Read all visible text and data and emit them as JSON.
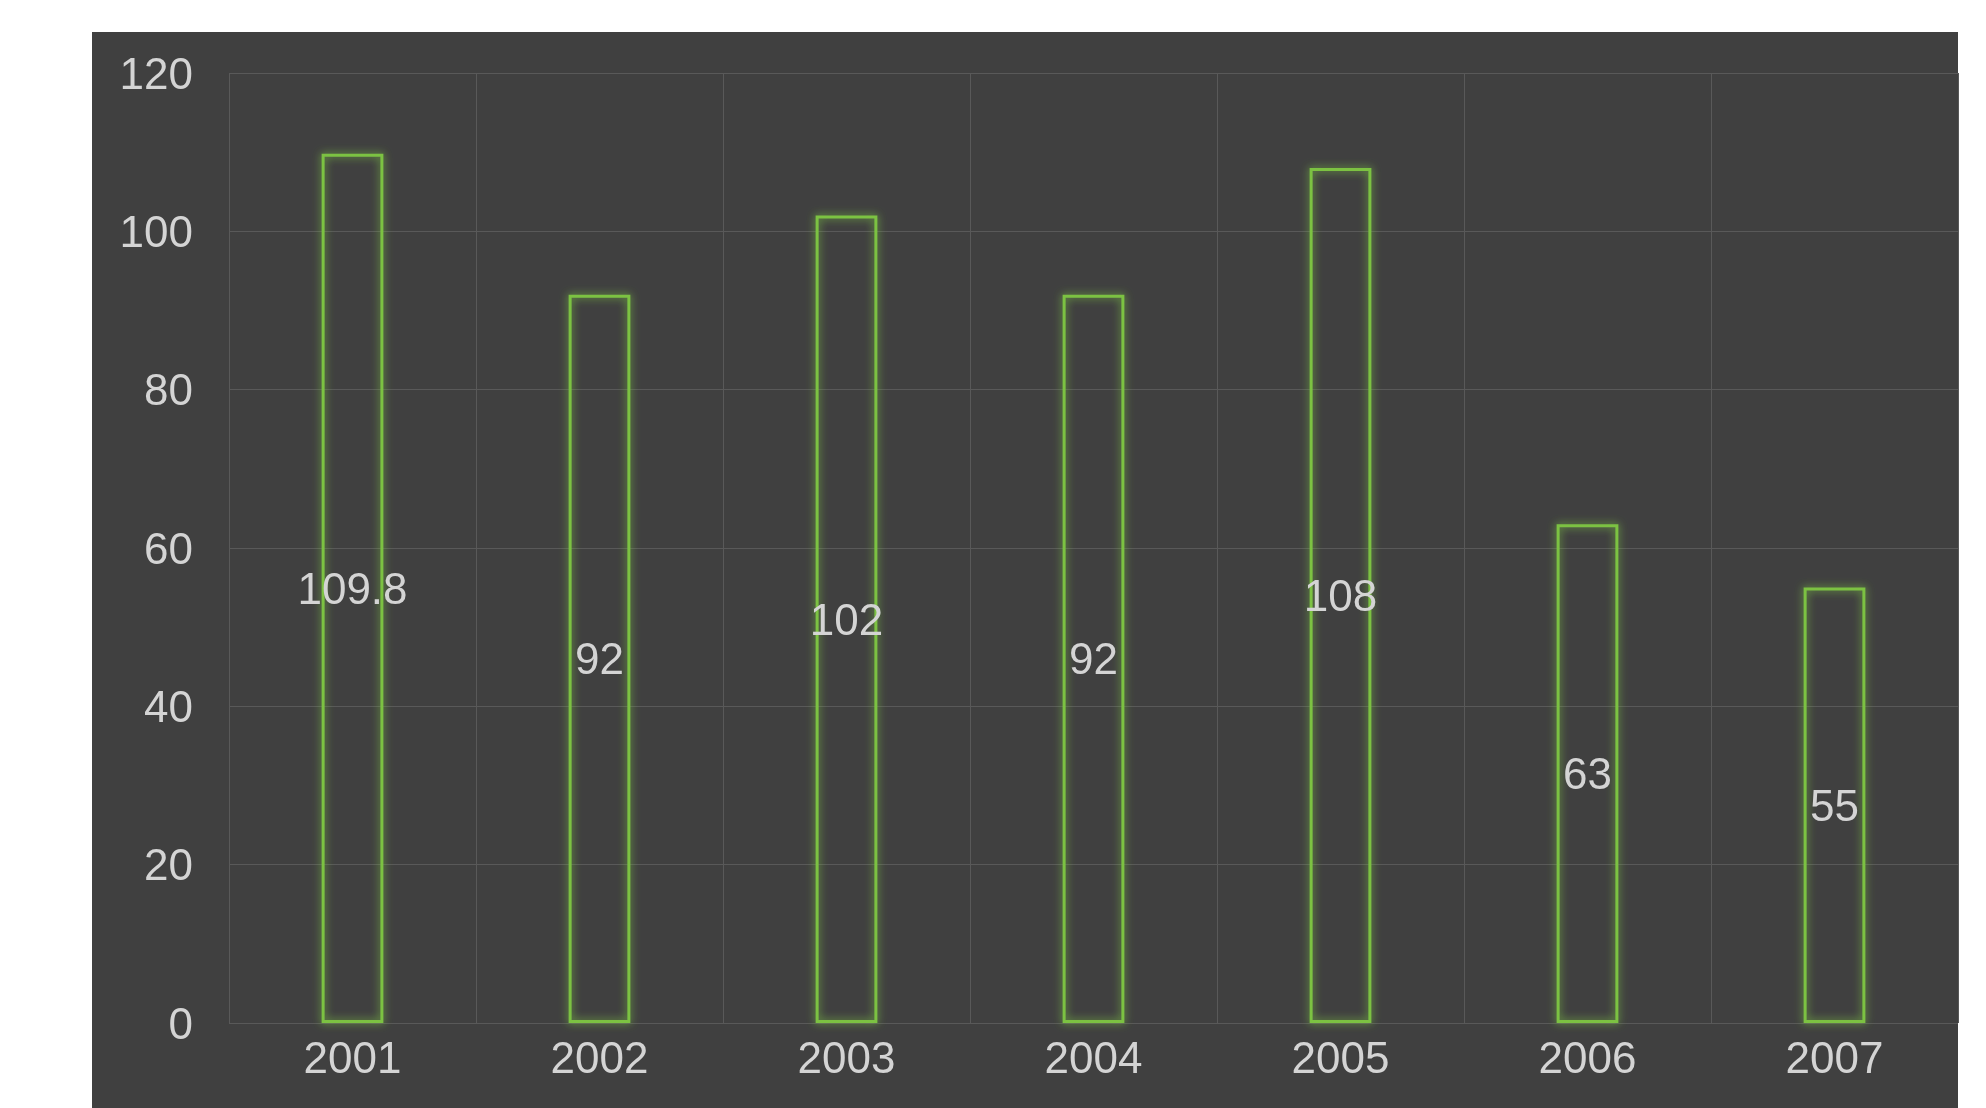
{
  "chart_data": {
    "type": "bar",
    "categories": [
      "2001",
      "2002",
      "2003",
      "2004",
      "2005",
      "2006",
      "2007"
    ],
    "values": [
      109.8,
      92,
      102,
      92,
      108,
      63,
      55
    ],
    "color": "#7cc243",
    "ylim": [
      0,
      120
    ],
    "yticks": [
      0,
      20,
      40,
      60,
      80,
      100,
      120
    ],
    "grid": true,
    "data_labels": true
  }
}
